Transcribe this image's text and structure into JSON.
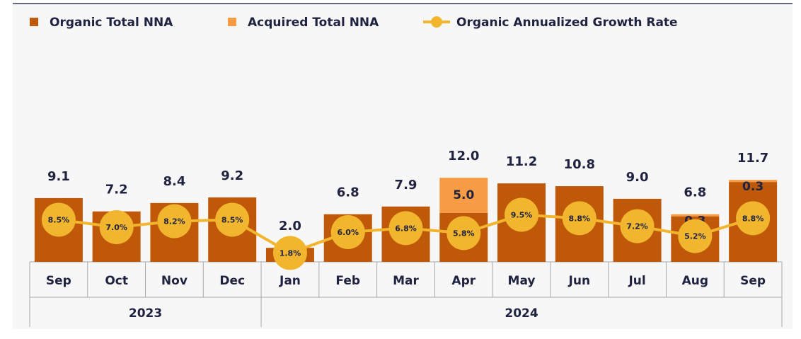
{
  "chart_data": {
    "type": "bar",
    "groups": [
      {
        "label": "2023",
        "categories": [
          "Sep",
          "Oct",
          "Nov",
          "Dec"
        ]
      },
      {
        "label": "2024",
        "categories": [
          "Jan",
          "Feb",
          "Mar",
          "Apr",
          "May",
          "Jun",
          "Jul",
          "Aug",
          "Sep"
        ]
      }
    ],
    "series": [
      {
        "name": "Organic Total NNA",
        "color": "#c0580a",
        "values": [
          9.1,
          7.2,
          8.4,
          9.2,
          2.0,
          6.8,
          7.9,
          7.0,
          11.2,
          10.8,
          9.0,
          6.5,
          11.4
        ]
      },
      {
        "name": "Acquired Total NNA",
        "color": "#f79b45",
        "values": [
          null,
          null,
          null,
          null,
          null,
          null,
          null,
          5.0,
          null,
          null,
          null,
          0.3,
          0.3
        ],
        "value_labels": [
          null,
          null,
          null,
          null,
          null,
          null,
          null,
          "5.0",
          null,
          null,
          null,
          "0.3",
          "0.3"
        ]
      },
      {
        "name": "Organic Annualized Growth Rate",
        "color": "#f1b52e",
        "axis": "y2",
        "type": "line",
        "values": [
          8.5,
          7.0,
          8.2,
          8.5,
          1.8,
          6.0,
          6.8,
          5.8,
          9.5,
          8.8,
          7.2,
          5.2,
          8.8
        ],
        "value_labels": [
          "8.5%",
          "7.0%",
          "8.2%",
          "8.5%",
          "1.8%",
          "6.0%",
          "6.8%",
          "5.8%",
          "9.5%",
          "8.8%",
          "7.2%",
          "5.2%",
          "8.8%"
        ]
      }
    ],
    "total_labels": [
      "9.1",
      "7.2",
      "8.4",
      "9.2",
      "2.0",
      "6.8",
      "7.9",
      "12.0",
      "11.2",
      "10.8",
      "9.0",
      "6.8",
      "11.7"
    ],
    "ylim": [
      0,
      30
    ],
    "y2lim": [
      0,
      42.4
    ],
    "legend": "top-left"
  }
}
